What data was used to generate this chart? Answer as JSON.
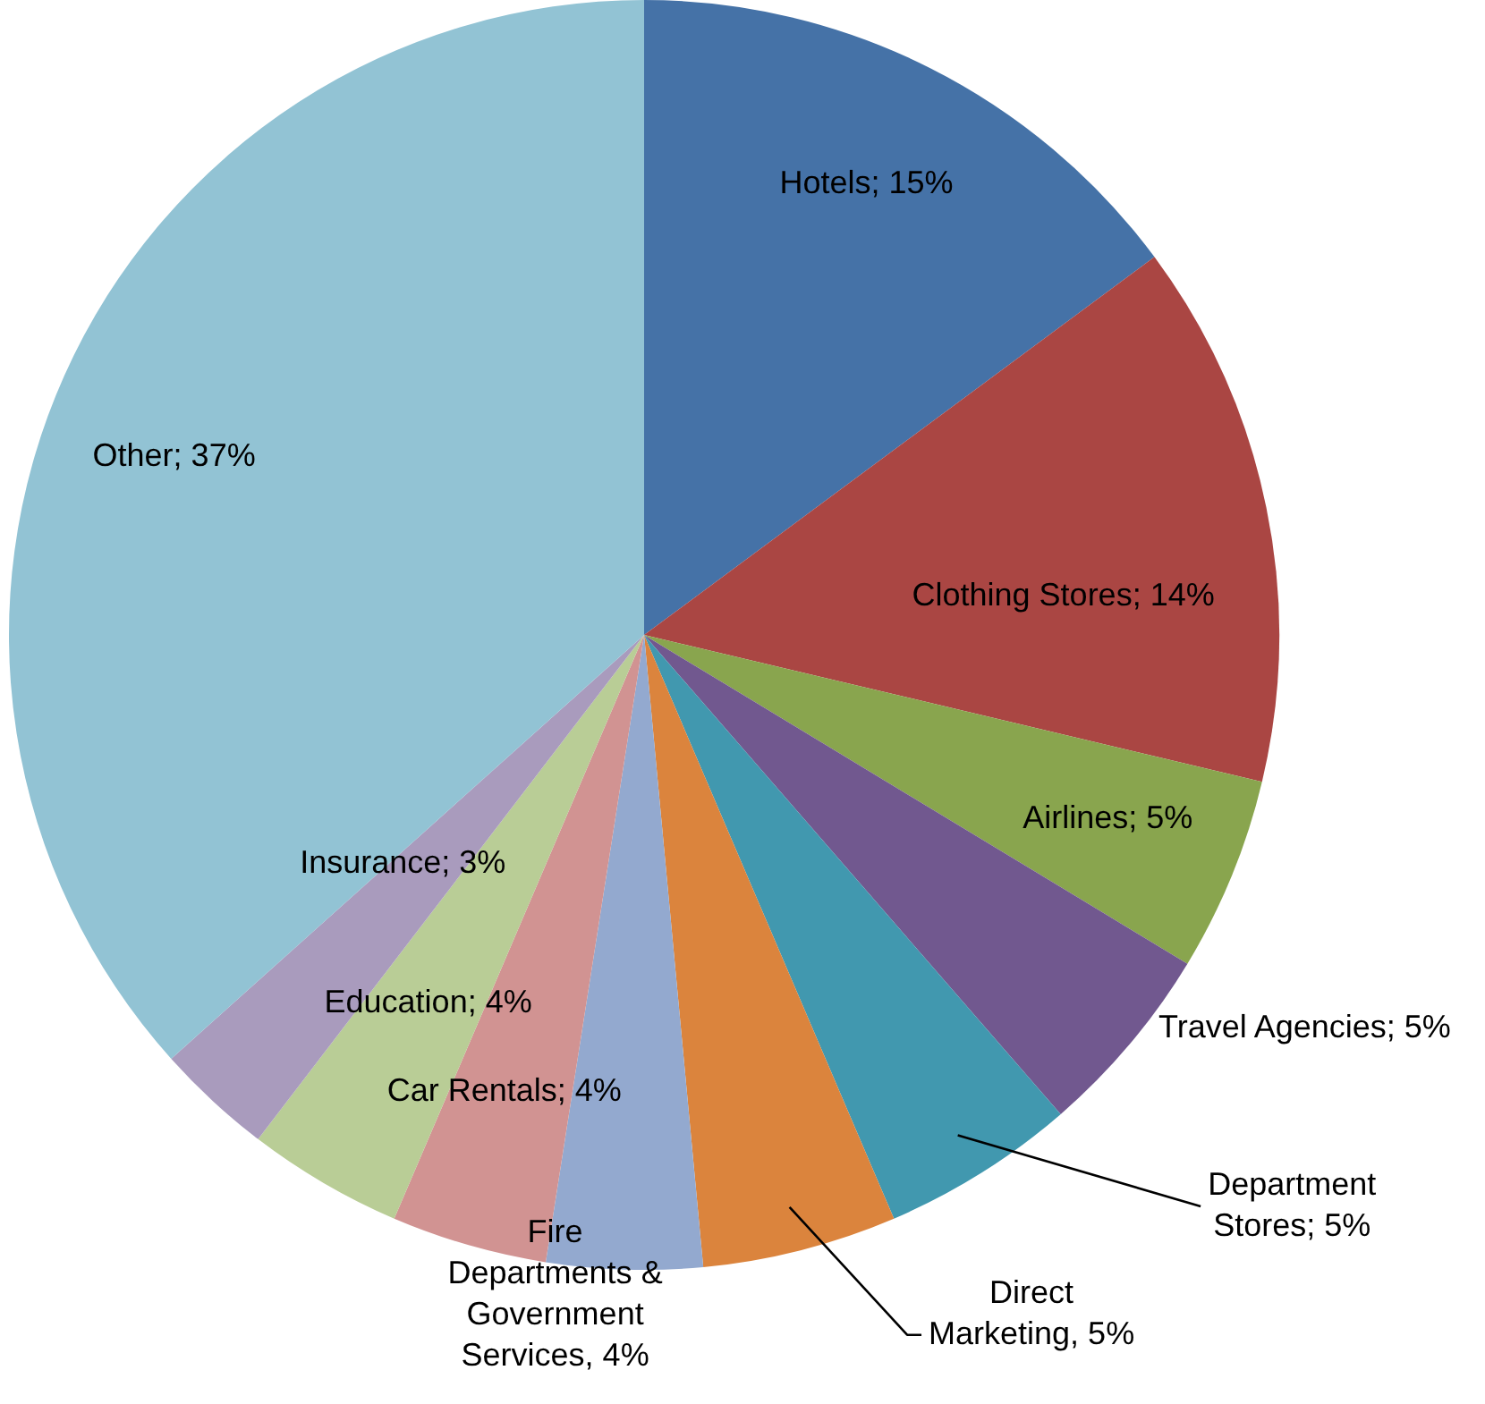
{
  "chart_data": {
    "type": "pie",
    "categories": [
      "Hotels",
      "Clothing Stores",
      "Airlines",
      "Travel Agencies",
      "Department Stores",
      "Direct Marketing",
      "Fire Departments & Government Services",
      "Car Rentals",
      "Education",
      "Insurance",
      "Other"
    ],
    "values": [
      15,
      14,
      5,
      5,
      5,
      5,
      4,
      4,
      4,
      3,
      37
    ],
    "colors": [
      "#4572a7",
      "#aa4643",
      "#89a54e",
      "#71588f",
      "#4198af",
      "#db843d",
      "#93a9cf",
      "#d19392",
      "#b9cd96",
      "#a99bbd",
      "#92c3d4"
    ],
    "value_labels": [
      "15%",
      "14%",
      "5%",
      "5%",
      "5%",
      "5%",
      "4%",
      "4%",
      "4%",
      "3%",
      "37%"
    ],
    "legend": false
  }
}
